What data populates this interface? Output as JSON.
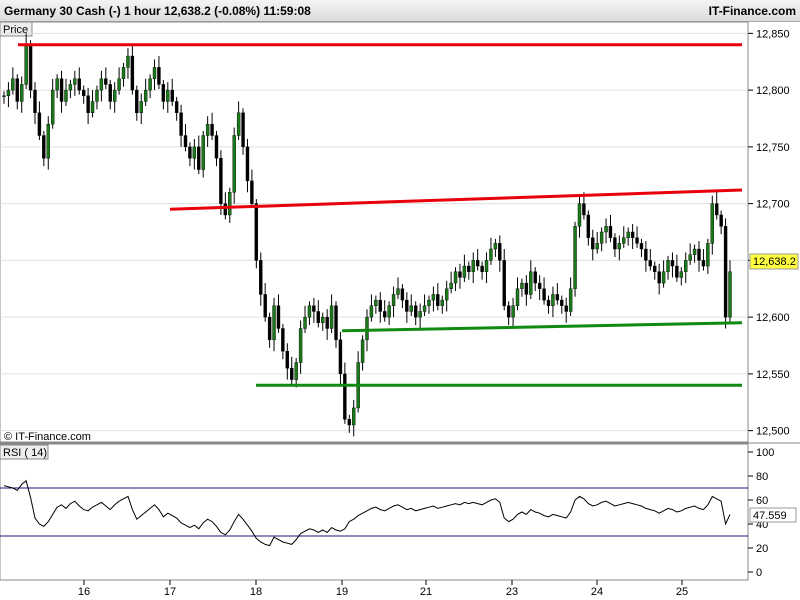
{
  "header": {
    "title": "Germany 30 Cash (-)   1 hour   12,638.2 (-0.08%)   11:59:08",
    "brand": "IT-Finance.com"
  },
  "price_panel": {
    "label": "Price",
    "watermark": "© IT-Finance.com",
    "last_price": "12,638.2"
  },
  "rsi_panel": {
    "label": "RSI ( 14)",
    "last_value": "47.559"
  },
  "colors": {
    "resistance": "#e8000b",
    "support": "#108a10",
    "candle_up": "#1a7a1a",
    "candle_down": "#000000",
    "price_tag": "#ffff40",
    "rsi_line": "#000000",
    "rsi_band": "#1a1a7a"
  },
  "chart_data": [
    {
      "type": "candlestick",
      "title": "Germany 30 Cash (-)",
      "timeframe": "1 hour",
      "ylim": [
        12490,
        12860
      ],
      "yticks": [
        "12,850",
        "12,800",
        "12,750",
        "12,700",
        "12,650",
        "12,600",
        "12,550",
        "12,500"
      ],
      "x_labels": [
        "16",
        "17",
        "18",
        "19",
        "21",
        "23",
        "24",
        "25"
      ],
      "close_series": [
        12795,
        12800,
        12810,
        12790,
        12805,
        12840,
        12800,
        12780,
        12760,
        12740,
        12770,
        12800,
        12810,
        12790,
        12800,
        12805,
        12810,
        12800,
        12795,
        12780,
        12790,
        12800,
        12810,
        12805,
        12790,
        12800,
        12810,
        12820,
        12830,
        12800,
        12780,
        12790,
        12800,
        12810,
        12820,
        12805,
        12790,
        12800,
        12790,
        12780,
        12760,
        12750,
        12740,
        12750,
        12730,
        12760,
        12770,
        12760,
        12740,
        12700,
        12690,
        12710,
        12760,
        12780,
        12750,
        12720,
        12700,
        12650,
        12620,
        12600,
        12580,
        12610,
        12590,
        12570,
        12555,
        12545,
        12560,
        12590,
        12600,
        12610,
        12605,
        12595,
        12600,
        12590,
        12610,
        12580,
        12550,
        12510,
        12505,
        12520,
        12560,
        12580,
        12600,
        12610,
        12615,
        12605,
        12600,
        12610,
        12620,
        12625,
        12615,
        12605,
        12610,
        12600,
        12605,
        12610,
        12615,
        12620,
        12610,
        12615,
        12625,
        12630,
        12640,
        12635,
        12645,
        12640,
        12650,
        12645,
        12640,
        12650,
        12660,
        12665,
        12650,
        12610,
        12600,
        12610,
        12625,
        12630,
        12620,
        12640,
        12630,
        12625,
        12615,
        12610,
        12620,
        12615,
        12610,
        12605,
        12625,
        12680,
        12700,
        12690,
        12670,
        12660,
        12665,
        12675,
        12680,
        12670,
        12660,
        12665,
        12670,
        12675,
        12670,
        12665,
        12660,
        12650,
        12645,
        12640,
        12630,
        12640,
        12650,
        12645,
        12635,
        12640,
        12650,
        12655,
        12660,
        12650,
        12645,
        12665,
        12700,
        12690,
        12680,
        12600,
        12640
      ],
      "trendlines": [
        {
          "color": "resistance",
          "from": [
            "15",
            12840
          ],
          "to": [
            "25",
            12840
          ]
        },
        {
          "color": "resistance",
          "from": [
            "17",
            12695
          ],
          "to": [
            "25",
            12712
          ]
        },
        {
          "color": "support",
          "from": [
            "19",
            12588
          ],
          "to": [
            "25",
            12595
          ]
        },
        {
          "color": "support",
          "from": [
            "18",
            12540
          ],
          "to": [
            "25",
            12540
          ]
        }
      ]
    },
    {
      "type": "line",
      "title": "RSI ( 14)",
      "ylim": [
        0,
        100
      ],
      "yticks": [
        "100",
        "80",
        "60",
        "40",
        "20",
        "0"
      ],
      "bands": [
        70,
        30
      ],
      "values": [
        72,
        71,
        70,
        68,
        73,
        76,
        62,
        45,
        40,
        38,
        42,
        48,
        54,
        56,
        53,
        57,
        59,
        55,
        52,
        51,
        54,
        56,
        58,
        55,
        52,
        56,
        59,
        61,
        63,
        52,
        44,
        47,
        50,
        53,
        56,
        52,
        46,
        49,
        47,
        45,
        41,
        39,
        37,
        39,
        36,
        41,
        44,
        42,
        38,
        33,
        31,
        35,
        42,
        48,
        44,
        39,
        34,
        28,
        25,
        23,
        22,
        29,
        27,
        25,
        24,
        23,
        27,
        32,
        34,
        36,
        35,
        33,
        35,
        33,
        37,
        35,
        34,
        36,
        42,
        44,
        47,
        49,
        51,
        53,
        54,
        52,
        51,
        53,
        55,
        56,
        54,
        52,
        53,
        51,
        52,
        53,
        54,
        55,
        53,
        54,
        55,
        56,
        57,
        56,
        58,
        57,
        58,
        57,
        56,
        58,
        60,
        61,
        58,
        45,
        42,
        44,
        48,
        50,
        48,
        52,
        50,
        49,
        47,
        46,
        48,
        47,
        46,
        45,
        50,
        60,
        63,
        61,
        57,
        55,
        56,
        58,
        59,
        57,
        55,
        56,
        57,
        58,
        57,
        56,
        55,
        53,
        52,
        51,
        49,
        51,
        53,
        52,
        50,
        51,
        53,
        54,
        55,
        53,
        52,
        56,
        63,
        61,
        59,
        40,
        48
      ]
    }
  ]
}
